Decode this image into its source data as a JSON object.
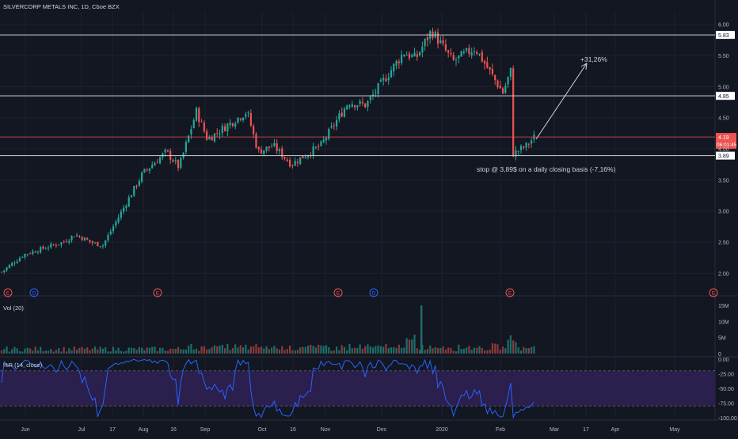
{
  "colors": {
    "background": "#131722",
    "up": "#26a69a",
    "down": "#ef5350",
    "grid": "#1e222d",
    "axis_text": "#b2b5be",
    "level_line": "#d1d4dc",
    "price_line": "#ef5350",
    "rsi_line": "#2962ff",
    "rsi_band": "#2a1f4d"
  },
  "header": {
    "title": "SILVERCORP METALS INC, 1D, Cboe BZX"
  },
  "chart_data": {
    "type": "candlestick",
    "y_ticks": [
      "6.00",
      "5.50",
      "5.00",
      "4.50",
      "4.00",
      "3.50",
      "3.00",
      "2.50",
      "2.00"
    ],
    "x_ticks": [
      "Jun",
      "Jul",
      "17",
      "Aug",
      "16",
      "Sep",
      "Oct",
      "16",
      "Nov",
      "Dec",
      "2020",
      "Feb",
      "Mar",
      "17",
      "Apr",
      "May"
    ],
    "ylim": [
      1.75,
      6.2
    ],
    "levels": [
      {
        "value": 5.83,
        "label": "5.83"
      },
      {
        "value": 4.85,
        "label": "4.85"
      },
      {
        "value": 3.89,
        "label": "3.89"
      }
    ],
    "current_price": {
      "value": 4.19,
      "label": "4.19",
      "countdown": "06:01:45"
    },
    "annotations": [
      {
        "text": "+31,26%"
      },
      {
        "text": "stop @ 3,89$ on a daily closing basis (-7,16%)"
      }
    ],
    "events": [
      "E",
      "D",
      "E",
      "E",
      "D",
      "E",
      "E"
    ],
    "price_path": [
      [
        "Jun",
        2.02
      ],
      [
        "Jun",
        2.3
      ],
      [
        "Jul",
        2.5
      ],
      [
        "Jul",
        2.62
      ],
      [
        "17",
        2.48
      ],
      [
        "17",
        2.45
      ],
      [
        "Aug",
        3.6
      ],
      [
        "Aug",
        3.95
      ],
      [
        "16",
        3.7
      ],
      [
        "Sep",
        4.6
      ],
      [
        "Sep",
        4.15
      ],
      [
        "Sep",
        4.6
      ],
      [
        "Oct",
        3.95
      ],
      [
        "Oct",
        4.05
      ],
      [
        "16",
        3.75
      ],
      [
        "16",
        3.95
      ],
      [
        "Nov",
        4.05
      ],
      [
        "Nov",
        4.75
      ],
      [
        "Nov",
        4.7
      ],
      [
        "Dec",
        5.55
      ],
      [
        "Dec",
        5.45
      ],
      [
        "2020",
        5.9
      ],
      [
        "2020",
        5.4
      ],
      [
        "2020",
        5.62
      ],
      [
        "Feb",
        4.9
      ],
      [
        "Feb",
        5.25
      ],
      [
        "Feb",
        3.92
      ],
      [
        "Feb",
        4.05
      ],
      [
        "Feb",
        4.19
      ]
    ],
    "volume": {
      "title": "Vol (20)",
      "y_ticks": [
        "15M",
        "10M",
        "5M",
        "0"
      ],
      "ylim": [
        0,
        16
      ],
      "spike": {
        "x": "Dec",
        "value": 15
      }
    },
    "oscillator": {
      "title": "%R (14, close)",
      "y_ticks": [
        "0.00",
        "-25.00",
        "-50.00",
        "-75.00",
        "-100.00"
      ],
      "ylim": [
        -100,
        0
      ],
      "band": [
        -80,
        -20
      ]
    }
  }
}
